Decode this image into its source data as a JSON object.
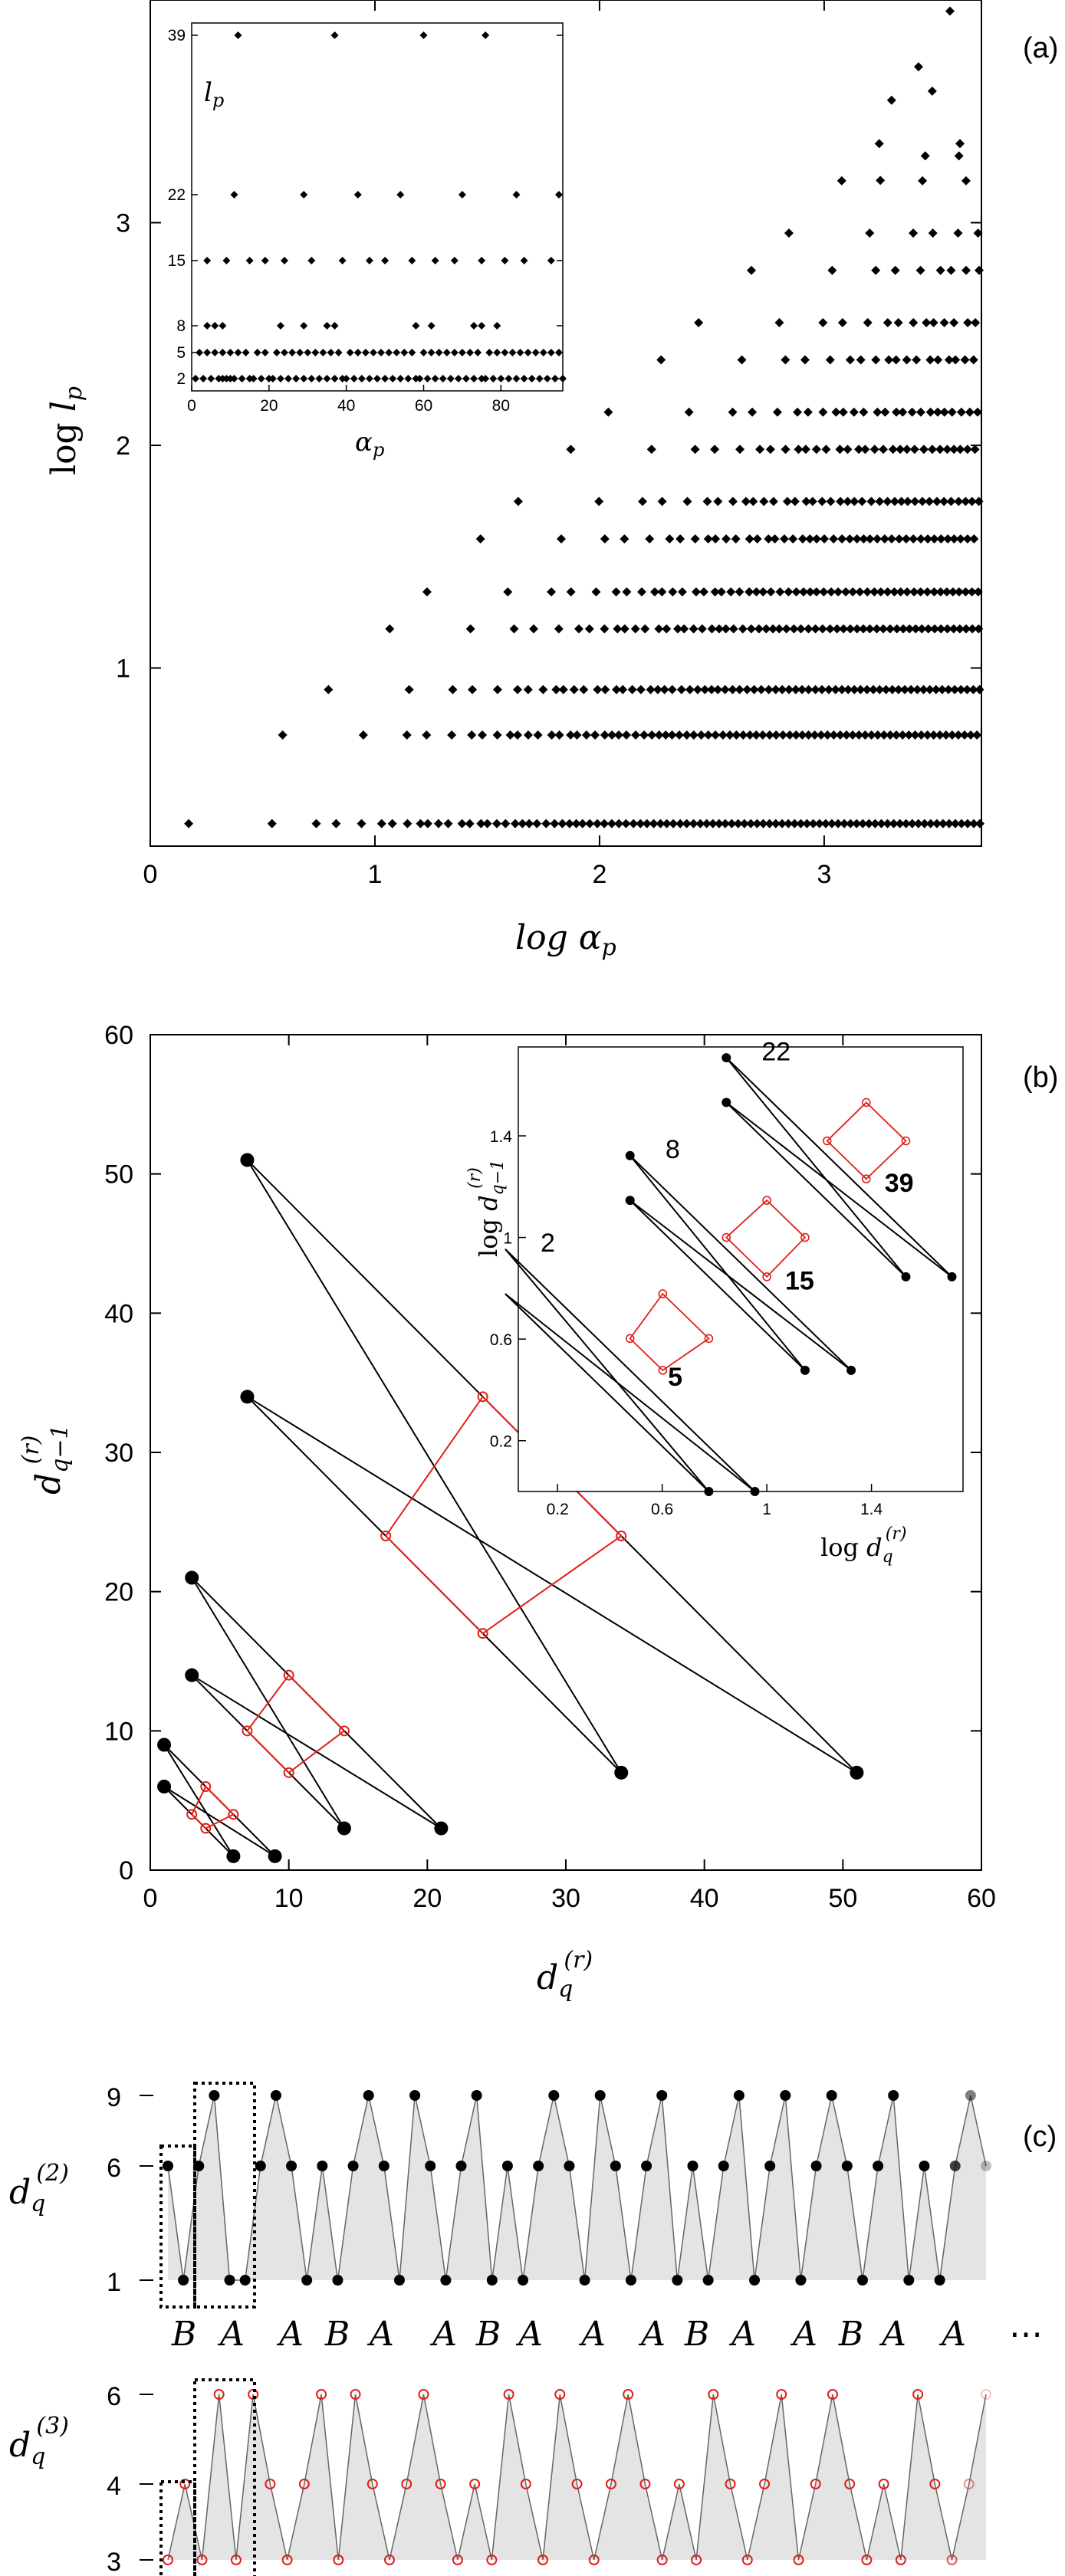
{
  "chart_data": [
    {
      "panel_label": "(a)",
      "type": "scatter",
      "xlabel": "log α_p",
      "ylabel": "log l_p",
      "xlim": [
        0,
        3.7
      ],
      "ylim": [
        0.2,
        4.0
      ],
      "xticks": [
        "0",
        "1",
        "2",
        "3"
      ],
      "yticks": [
        "1",
        "2",
        "3"
      ],
      "grid": false,
      "levels_log": [
        0.301,
        0.699,
        0.903,
        1.176,
        1.342,
        1.58,
        1.748,
        1.982,
        2.149,
        2.384,
        2.551,
        2.786,
        2.953,
        3.188,
        3.355,
        3.591
      ],
      "level_values": [
        2,
        5,
        8,
        15,
        22,
        39,
        56,
        96,
        141,
        242,
        356,
        611,
        898,
        1543,
        2266,
        3894
      ],
      "inset": {
        "type": "scatter",
        "xlabel": "α_p",
        "ylabel": "l_p",
        "xlim": [
          0,
          96
        ],
        "xticks": [
          "0",
          "20",
          "40",
          "60",
          "80"
        ],
        "yticks": [
          "2",
          "5",
          "8",
          "15",
          "22",
          "39"
        ],
        "levels": [
          2,
          5,
          8,
          15,
          22,
          39
        ],
        "points": {
          "39": [
            12,
            37,
            60,
            76
          ],
          "22": [
            11,
            29,
            43,
            54,
            70,
            84,
            95
          ],
          "15": [
            4,
            9,
            15,
            19,
            24,
            31,
            39,
            46,
            50,
            57,
            63,
            68,
            75,
            81,
            86,
            93
          ],
          "8": [
            4,
            6,
            8,
            23,
            29,
            35,
            37,
            58,
            62,
            73,
            75,
            79
          ],
          "5": [
            2,
            4,
            6,
            8,
            10,
            12,
            14,
            17,
            19,
            22,
            24,
            26,
            28,
            30,
            32,
            34,
            36,
            38,
            41,
            43,
            45,
            47,
            49,
            51,
            53,
            55,
            57,
            60,
            62,
            64,
            66,
            68,
            70,
            72,
            74,
            77,
            79,
            81,
            83,
            85,
            87,
            89,
            91,
            93,
            95
          ],
          "2": [
            1,
            3,
            5,
            7,
            8,
            9,
            10,
            11,
            13,
            15,
            16,
            18,
            20,
            21,
            23,
            25,
            27,
            29,
            31,
            33,
            35,
            37,
            39,
            40,
            42,
            44,
            46,
            48,
            50,
            52,
            54,
            56,
            58,
            59,
            61,
            63,
            65,
            67,
            69,
            71,
            73,
            75,
            76,
            78,
            80,
            82,
            84,
            86,
            88,
            90,
            92,
            94,
            96
          ]
        }
      }
    },
    {
      "panel_label": "(b)",
      "type": "scatter",
      "xlabel": "d_q^(r)",
      "ylabel": "d_{q−1}^(r)",
      "xlim": [
        0,
        60
      ],
      "ylim": [
        0,
        60
      ],
      "xticks": [
        "0",
        "10",
        "20",
        "30",
        "40",
        "50",
        "60"
      ],
      "yticks": [
        "0",
        "10",
        "20",
        "30",
        "40",
        "50",
        "60"
      ],
      "black_points": [
        [
          1,
          9
        ],
        [
          1,
          6
        ],
        [
          3,
          21
        ],
        [
          3,
          14
        ],
        [
          7,
          51
        ],
        [
          7,
          34
        ],
        [
          6,
          1
        ],
        [
          9,
          1
        ],
        [
          14,
          3
        ],
        [
          21,
          3
        ],
        [
          34,
          7
        ],
        [
          51,
          7
        ]
      ],
      "black_segments": [
        [
          [
            1,
            9
          ],
          [
            9,
            1
          ]
        ],
        [
          [
            1,
            9
          ],
          [
            6,
            1
          ]
        ],
        [
          [
            1,
            6
          ],
          [
            9,
            1
          ]
        ],
        [
          [
            1,
            6
          ],
          [
            6,
            1
          ]
        ],
        [
          [
            3,
            21
          ],
          [
            21,
            3
          ]
        ],
        [
          [
            3,
            21
          ],
          [
            14,
            3
          ]
        ],
        [
          [
            3,
            14
          ],
          [
            21,
            3
          ]
        ],
        [
          [
            3,
            14
          ],
          [
            14,
            3
          ]
        ],
        [
          [
            7,
            51
          ],
          [
            51,
            7
          ]
        ],
        [
          [
            7,
            51
          ],
          [
            34,
            7
          ]
        ],
        [
          [
            7,
            34
          ],
          [
            51,
            7
          ]
        ],
        [
          [
            7,
            34
          ],
          [
            34,
            7
          ]
        ]
      ],
      "red_diamonds": [
        [
          [
            3,
            4
          ],
          [
            4,
            6
          ],
          [
            6,
            4
          ],
          [
            4,
            3
          ]
        ],
        [
          [
            7,
            10
          ],
          [
            10,
            14
          ],
          [
            14,
            10
          ],
          [
            10,
            7
          ]
        ],
        [
          [
            17,
            24
          ],
          [
            24,
            34
          ],
          [
            34,
            24
          ],
          [
            24,
            17
          ]
        ]
      ],
      "inset": {
        "xlabel": "log d_q^(r)",
        "ylabel": "log d_{q−1}^(r)",
        "xlim": [
          0.05,
          1.75
        ],
        "ylim": [
          0,
          1.75
        ],
        "xticks": [
          "0.2",
          "0.6",
          "1",
          "1.4"
        ],
        "yticks": [
          "0.2",
          "0.6",
          "1",
          "1.4"
        ],
        "black_labels": [
          "2",
          "8",
          "22"
        ],
        "red_labels": [
          "5",
          "15",
          "39"
        ]
      }
    },
    {
      "panel_label": "(c)",
      "type": "line",
      "series": [
        {
          "ylabel": "d_q^(2)",
          "yticks": [
            "1",
            "6",
            "9"
          ],
          "values": [
            6,
            1,
            6,
            9,
            1,
            1,
            6,
            9,
            6,
            1,
            6,
            1,
            6,
            9,
            6,
            1,
            9,
            6,
            1,
            6,
            9,
            1,
            6,
            1,
            6,
            9,
            6,
            1,
            9,
            6,
            1,
            6,
            9,
            1,
            6,
            1,
            6,
            9,
            1,
            6,
            9,
            1,
            6,
            9,
            6,
            1,
            6,
            9,
            1,
            6,
            1,
            6,
            9,
            6
          ]
        },
        {
          "ylabel": "d_q^(3)",
          "yticks": [
            "3",
            "4",
            "6"
          ],
          "values": [
            3,
            4,
            3,
            6,
            3,
            6,
            4,
            3,
            4,
            6,
            3,
            6,
            4,
            3,
            4,
            6,
            4,
            3,
            4,
            3,
            6,
            4,
            3,
            6,
            4,
            3,
            4,
            6,
            4,
            3,
            4,
            3,
            6,
            4,
            3,
            4,
            6,
            3,
            4,
            6,
            4,
            3,
            4,
            3,
            6,
            4,
            3,
            4,
            6
          ]
        }
      ],
      "sequence": [
        "B",
        "A",
        "A",
        "B",
        "A",
        "A",
        "B",
        "A",
        "A",
        "A",
        "B",
        "A",
        "A",
        "B",
        "A",
        "A"
      ],
      "ellipsis": "⋯"
    }
  ]
}
